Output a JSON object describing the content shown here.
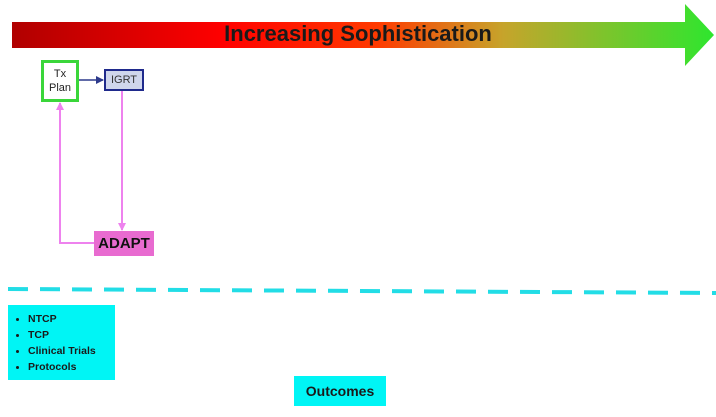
{
  "banner": {
    "title": "Increasing Sophistication",
    "gradient_colors": [
      "#b00000",
      "#ff0000",
      "#ff3300",
      "#c6a42b",
      "#2ee62e"
    ]
  },
  "nodes": {
    "tx_plan": {
      "label_line1": "Tx",
      "label_line2": "Plan",
      "border_color": "#3ad63a"
    },
    "igrt": {
      "label": "IGRT",
      "border_color": "#1f2a8c",
      "fill_color": "#cfd6ec"
    },
    "adapt": {
      "label": "ADAPT",
      "fill_color": "#e86bd0"
    }
  },
  "connector_colors": {
    "tx_to_igrt": "#2d3a8c",
    "adapt_loop": "#ee82ee"
  },
  "divider": {
    "color": "#22dde6",
    "style": "dashed"
  },
  "metrics": {
    "items": [
      "NTCP",
      "TCP",
      "Clinical Trials",
      "Protocols"
    ],
    "fill_color": "#00f5f5"
  },
  "outcomes": {
    "label": "Outcomes",
    "fill_color": "#00f5f5"
  }
}
